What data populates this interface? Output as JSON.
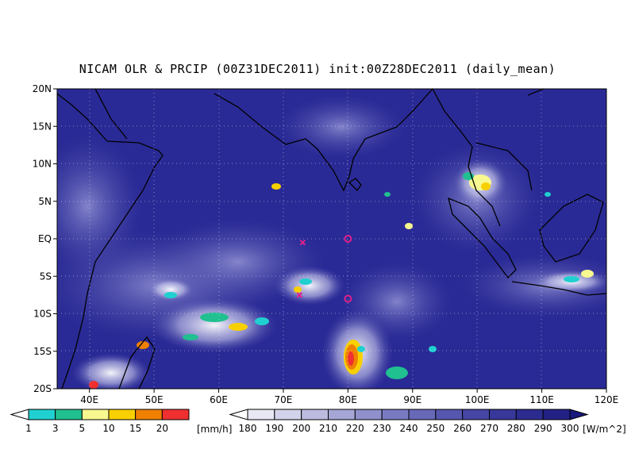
{
  "title": "NICAM OLR & PRCIP (00Z31DEC2011) init:00Z28DEC2011 (daily_mean)",
  "map": {
    "lat_labels": [
      "20N",
      "15N",
      "10N",
      "5N",
      "EQ",
      "5S",
      "10S",
      "15S",
      "20S"
    ],
    "lon_labels": [
      "40E",
      "50E",
      "60E",
      "70E",
      "80E",
      "90E",
      "100E",
      "110E",
      "120E"
    ],
    "lon_range": [
      35,
      120
    ],
    "lat_range": [
      -20,
      20
    ],
    "grid": "dotted",
    "markers": [
      {
        "symbol": "x",
        "lon": 73,
        "lat": -0.5,
        "color": "#e0208a"
      },
      {
        "symbol": "x",
        "lon": 72.5,
        "lat": -7.5,
        "color": "#e0208a"
      },
      {
        "symbol": "o",
        "lon": 80,
        "lat": 0,
        "color": "#e0208a"
      },
      {
        "symbol": "o",
        "lon": 80,
        "lat": -8,
        "color": "#e0208a"
      }
    ]
  },
  "precip_colorbar": {
    "labels": [
      "1",
      "3",
      "5",
      "10",
      "15",
      "20"
    ],
    "unit": "[mm/h]",
    "colors": [
      "#20d0d0",
      "#20c090",
      "#f8f890",
      "#f8d000",
      "#f08000",
      "#f03030"
    ]
  },
  "olr_colorbar": {
    "labels": [
      "180",
      "190",
      "200",
      "210",
      "220",
      "230",
      "240",
      "250",
      "260",
      "270",
      "280",
      "290",
      "300"
    ],
    "unit": "[W/m^2]",
    "colors": [
      "#ffffff",
      "#e8e8f4",
      "#d2d2ea",
      "#bcbce0",
      "#a6a6d6",
      "#9090cc",
      "#7a7ac2",
      "#6868b8",
      "#5656ae",
      "#4646a4",
      "#38389a",
      "#2c2c90",
      "#222286",
      "#18187c"
    ]
  },
  "colors": {
    "ocean_base": "#2a2a96",
    "bright_cloud": "#ffffff"
  }
}
